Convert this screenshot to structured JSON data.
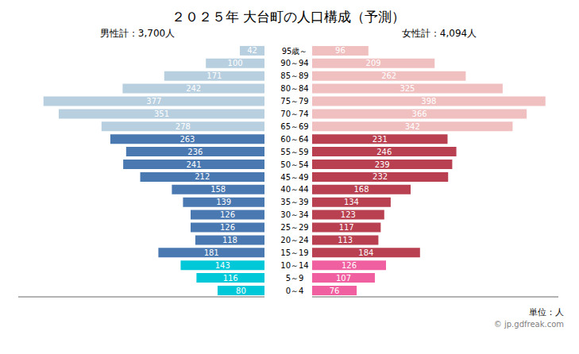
{
  "chart_data": [
    {
      "type": "bar",
      "orientation": "horizontal",
      "title": "２０２５年 大台町の人口構成（予測）",
      "subtitle": "男性計：3,700人",
      "categories": [
        "95歳～",
        "90～94",
        "85～89",
        "80～84",
        "75～79",
        "70～74",
        "65～69",
        "60～64",
        "55～59",
        "50～54",
        "45～49",
        "40～44",
        "35～39",
        "30～34",
        "25～29",
        "20～24",
        "15～19",
        "10～14",
        "5～9",
        "0～4"
      ],
      "values": [
        42,
        100,
        171,
        242,
        377,
        351,
        278,
        263,
        236,
        241,
        212,
        158,
        139,
        126,
        126,
        118,
        181,
        143,
        116,
        80
      ],
      "colors": [
        "#b8cfe0",
        "#b8cfe0",
        "#b8cfe0",
        "#b8cfe0",
        "#b8cfe0",
        "#b8cfe0",
        "#b8cfe0",
        "#4a78b0",
        "#4a78b0",
        "#4a78b0",
        "#4a78b0",
        "#4a78b0",
        "#4a78b0",
        "#4a78b0",
        "#4a78b0",
        "#4a78b0",
        "#4a78b0",
        "#00c8d8",
        "#00c8d8",
        "#00c8d8"
      ],
      "xlim": [
        420,
        0
      ],
      "data_labels": true,
      "tick_labels": "y"
    },
    {
      "type": "bar",
      "orientation": "horizontal",
      "subtitle": "女性計：4,094人",
      "categories": [
        "95歳～",
        "90～94",
        "85～89",
        "80～84",
        "75～79",
        "70～74",
        "65～69",
        "60～64",
        "55～59",
        "50～54",
        "45～49",
        "40～44",
        "35～39",
        "30～34",
        "25～29",
        "20～24",
        "15～19",
        "10～14",
        "5～9",
        "0～4"
      ],
      "values": [
        96,
        209,
        262,
        325,
        398,
        366,
        342,
        231,
        246,
        239,
        232,
        168,
        134,
        123,
        117,
        113,
        184,
        126,
        107,
        76
      ],
      "colors": [
        "#f0c0c0",
        "#f0c0c0",
        "#f0c0c0",
        "#f0c0c0",
        "#f0c0c0",
        "#f0c0c0",
        "#f0c0c0",
        "#b84050",
        "#b84050",
        "#b84050",
        "#b84050",
        "#b84050",
        "#b84050",
        "#b84050",
        "#b84050",
        "#b84050",
        "#b84050",
        "#f060a0",
        "#f060a0",
        "#f060a0"
      ],
      "xlim": [
        0,
        420
      ],
      "data_labels": true,
      "tick_labels": false,
      "annotations": [
        "単位：人",
        "© jp.gdfreak.com"
      ]
    }
  ]
}
